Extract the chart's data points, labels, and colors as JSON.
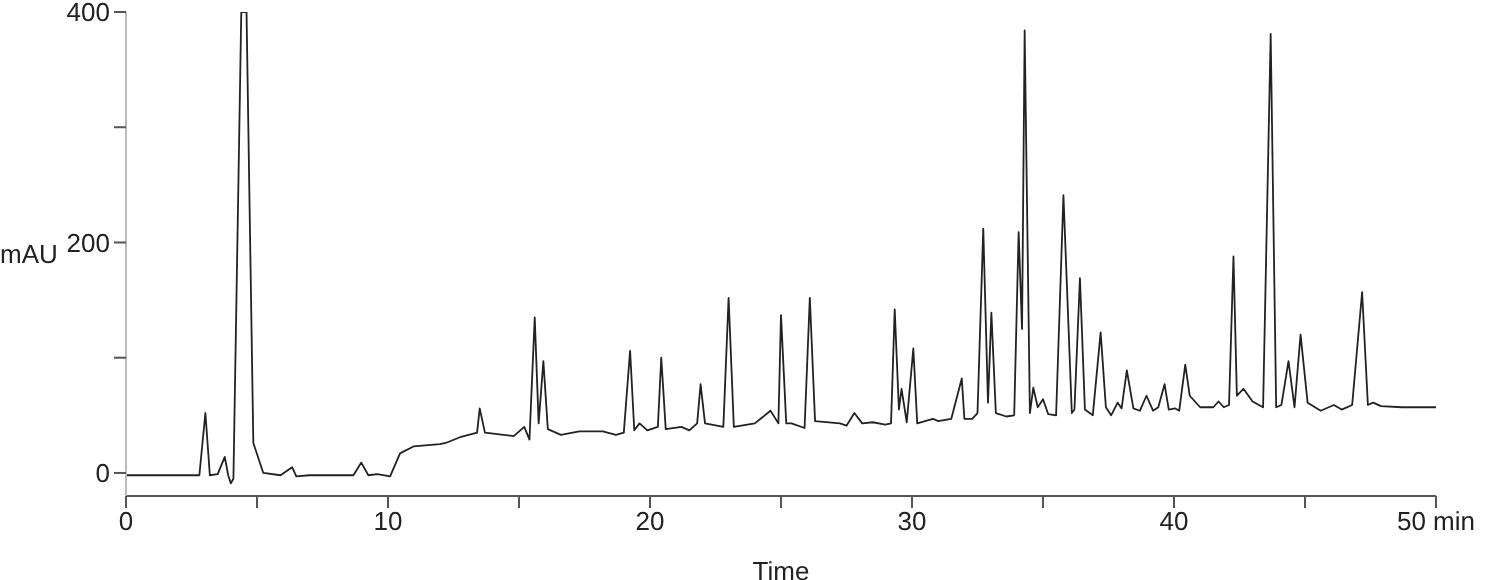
{
  "chart_data": {
    "type": "line",
    "xlabel": "Time",
    "ylabel": "mAU",
    "xlim": [
      0,
      50
    ],
    "ylim": [
      -20,
      400
    ],
    "xticks": [
      0,
      {
        "value": 5,
        "label": null
      },
      10,
      {
        "value": 15,
        "label": null
      },
      20,
      {
        "value": 25,
        "label": null
      },
      30,
      {
        "value": 35,
        "label": null
      },
      40,
      {
        "value": 45,
        "label": null
      },
      {
        "value": 50,
        "label": "50 min"
      }
    ],
    "yticks": [
      0,
      {
        "value": 100,
        "label": null
      },
      200,
      {
        "value": 300,
        "label": null
      },
      400
    ],
    "marker": "none",
    "x": [
      0,
      2.8,
      3.03,
      3.2,
      3.5,
      3.77,
      3.9,
      4.0,
      4.1,
      4.4,
      4.6,
      4.86,
      5.24,
      5.9,
      6.34,
      6.5,
      7.0,
      8.68,
      8.98,
      9.25,
      9.6,
      10.08,
      10.46,
      10.97,
      11.98,
      12.2,
      12.75,
      13.4,
      13.5,
      13.7,
      14.8,
      15.2,
      15.4,
      15.6,
      15.75,
      15.93,
      16.1,
      16.6,
      17.3,
      18.2,
      18.7,
      19.0,
      19.24,
      19.4,
      19.6,
      19.9,
      20.3,
      20.43,
      20.6,
      21.2,
      21.5,
      21.8,
      21.93,
      22.1,
      22.8,
      23.0,
      23.2,
      24.0,
      24.6,
      24.9,
      25.0,
      25.2,
      25.4,
      25.9,
      26.1,
      26.3,
      27.25,
      27.5,
      27.8,
      28.1,
      28.5,
      28.98,
      29.2,
      29.34,
      29.5,
      29.6,
      29.8,
      30.05,
      30.2,
      30.8,
      31.0,
      31.5,
      31.9,
      32.0,
      32.3,
      32.5,
      32.72,
      32.9,
      33.03,
      33.2,
      33.6,
      33.9,
      34.07,
      34.2,
      34.3,
      34.5,
      34.63,
      34.8,
      35.0,
      35.2,
      35.5,
      35.78,
      36.1,
      36.2,
      36.41,
      36.6,
      36.9,
      37.2,
      37.4,
      37.6,
      37.85,
      38.0,
      38.2,
      38.45,
      38.7,
      38.95,
      39.2,
      39.4,
      39.64,
      39.8,
      40.05,
      40.2,
      40.43,
      40.6,
      41.0,
      41.5,
      41.7,
      41.9,
      42.1,
      42.27,
      42.4,
      42.65,
      43.0,
      43.4,
      43.69,
      43.9,
      44.1,
      44.37,
      44.6,
      44.83,
      45.1,
      45.6,
      46.1,
      46.4,
      46.8,
      47.18,
      47.4,
      47.6,
      47.9,
      48.7,
      50.0
    ],
    "series": [
      {
        "color": "#222222",
        "values": [
          -2,
          -2,
          52,
          -2,
          -1,
          14,
          -2,
          -9,
          -5,
          400,
          400,
          26,
          0,
          -2,
          5,
          -3,
          -2,
          -2,
          9,
          -2,
          -1,
          -3,
          17,
          23,
          25,
          26,
          31,
          35,
          56,
          35,
          32,
          40,
          29,
          135,
          43,
          97,
          38,
          33,
          36,
          36,
          33,
          35,
          106,
          37,
          43,
          37,
          40,
          100,
          38,
          40,
          37,
          43,
          77,
          43,
          40,
          152,
          40,
          43,
          54,
          43,
          137,
          43,
          43,
          39,
          152,
          45,
          43,
          41,
          52,
          43,
          44,
          42,
          43,
          142,
          55,
          73,
          44,
          108,
          43,
          47,
          45,
          47,
          82,
          47,
          47,
          52,
          212,
          61,
          139,
          52,
          49,
          50,
          209,
          125,
          384,
          52,
          74,
          57,
          64,
          51,
          50,
          241,
          52,
          55,
          169,
          55,
          50,
          122,
          57,
          50,
          61,
          56,
          89,
          56,
          54,
          67,
          54,
          57,
          77,
          55,
          56,
          54,
          94,
          67,
          57,
          57,
          62,
          57,
          59,
          188,
          67,
          73,
          62,
          57,
          381,
          57,
          59,
          97,
          57,
          120,
          61,
          54,
          59,
          55,
          59,
          157,
          59,
          61,
          58,
          57,
          57
        ]
      }
    ]
  }
}
